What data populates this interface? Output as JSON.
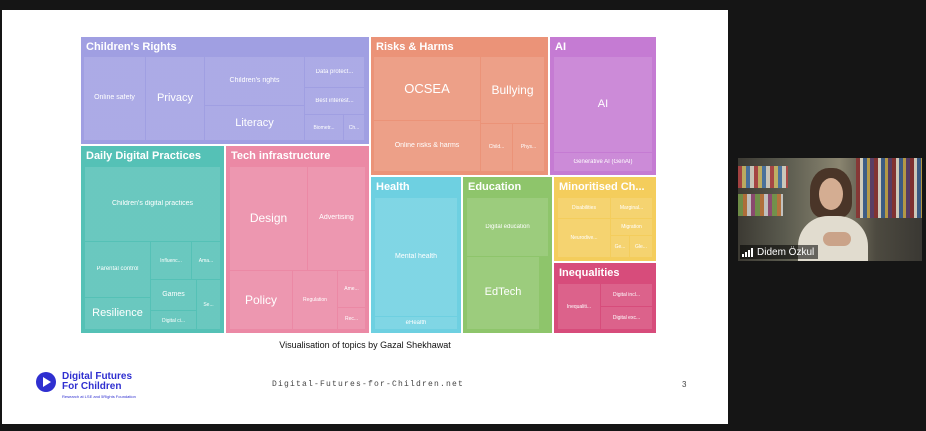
{
  "slide": {
    "caption": "Visualisation of topics by Gazal Shekhawat",
    "footer_url": "Digital-Futures-for-Children.net",
    "page_number": "3",
    "logo": {
      "line1": "Digital Futures",
      "line2": "For Children",
      "tagline": "Research at LSE and 5Rights Foundation"
    }
  },
  "treemap": {
    "colors": {
      "childrens_rights": "#a09fe2",
      "risks_harms": "#eb9378",
      "ai": "#c57bd3",
      "daily_digital_practices": "#55c1b6",
      "tech_infrastructure": "#eb89a5",
      "health": "#6ed0e1",
      "education": "#8ec56b",
      "minoritised": "#f4cd5c",
      "inequalities": "#d74c7b"
    },
    "groups": {
      "childrens_rights": {
        "title": "Children's Rights",
        "items": [
          "Online safety",
          "Privacy",
          "Children's rights",
          "Literacy",
          "Data protect...",
          "Best interest...",
          "Biometr...",
          "Ch..."
        ]
      },
      "risks_harms": {
        "title": "Risks & Harms",
        "items": [
          "OCSEA",
          "Bullying",
          "Online risks & harms",
          "Child...",
          "Phys..."
        ]
      },
      "ai": {
        "title": "AI",
        "items": [
          "AI",
          "Generative AI (GenAI)"
        ]
      },
      "daily_digital_practices": {
        "title": "Daily Digital Practices",
        "items": [
          "Children's digital practices",
          "Parental control",
          "Influenc...",
          "Ama...",
          "Games",
          "Resilience",
          "Digital ci...",
          "Se..."
        ]
      },
      "tech_infrastructure": {
        "title": "Tech infrastructure",
        "items": [
          "Design",
          "Advertising",
          "Policy",
          "Regulation",
          "Ame...",
          "Rec..."
        ]
      },
      "health": {
        "title": "Health",
        "items": [
          "Mental health",
          "eHealth"
        ]
      },
      "education": {
        "title": "Education",
        "items": [
          "Digital education",
          "EdTech"
        ]
      },
      "minoritised": {
        "title": "Minoritised Ch...",
        "items": [
          "Disabilities",
          "Marginal...",
          "Migration",
          "Neurodive...",
          "Ge...",
          "Gle..."
        ]
      },
      "inequalities": {
        "title": "Inequalities",
        "items": [
          "Inequaliti...",
          "Digital incl...",
          "Digital exc..."
        ]
      }
    }
  },
  "video": {
    "participant_name": "Didem Özkul",
    "icon": "signal-bars-icon"
  }
}
